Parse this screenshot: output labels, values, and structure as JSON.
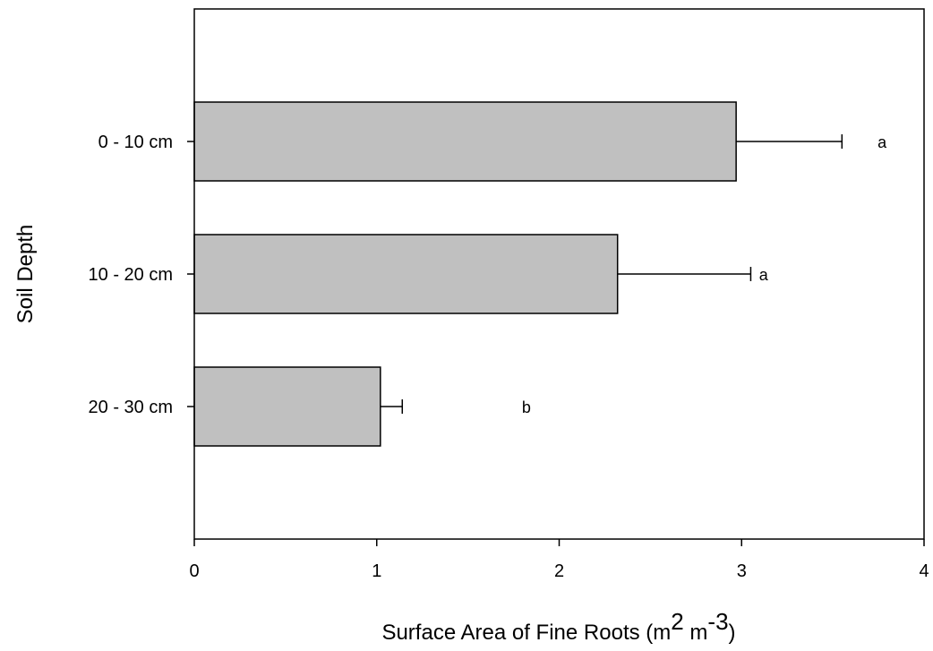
{
  "chart_data": {
    "type": "bar",
    "orientation": "horizontal",
    "categories": [
      "0 - 10 cm",
      "10 - 20 cm",
      "20 - 30 cm"
    ],
    "values": [
      2.97,
      2.32,
      1.02
    ],
    "error": [
      0.58,
      0.73,
      0.12
    ],
    "significance_labels": [
      "a",
      "a",
      "b"
    ],
    "significance_label_x": [
      3.77,
      3.12,
      1.82
    ],
    "xlim": [
      0,
      4
    ],
    "xticks": [
      0,
      1,
      2,
      3,
      4
    ],
    "xticklabels": [
      "0",
      "1",
      "2",
      "3",
      "4"
    ],
    "xlabel": {
      "base": "Surface Area of Fine Roots (m",
      "sup1": "2",
      "mid": " m",
      "sup2": "-3",
      "end": ")"
    },
    "ylabel": "Soil Depth",
    "title": "",
    "grid": false,
    "legend": "none",
    "bar_color": "#c0c0c0",
    "edge_color": "#000000"
  }
}
